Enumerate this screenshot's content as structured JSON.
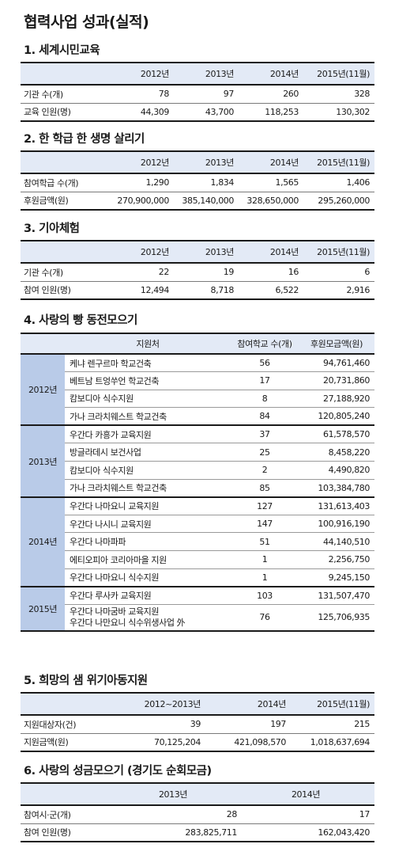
{
  "main_title": "협력사업 성과(실적)",
  "s1": {
    "title": "1. 세계시민교육",
    "headers": [
      "",
      "2012년",
      "2013년",
      "2014년",
      "2015년(11월)"
    ],
    "rows": [
      {
        "label": "기관 수(개)",
        "values": [
          "78",
          "97",
          "260",
          "328"
        ]
      },
      {
        "label": "교육 인원(명)",
        "values": [
          "44,309",
          "43,700",
          "118,253",
          "130,302"
        ]
      }
    ]
  },
  "s2": {
    "title": "2. 한 학급 한 생명 살리기",
    "headers": [
      "",
      "2012년",
      "2013년",
      "2014년",
      "2015년(11월)"
    ],
    "rows": [
      {
        "label": "참여학급 수(개)",
        "values": [
          "1,290",
          "1,834",
          "1,565",
          "1,406"
        ]
      },
      {
        "label": "후원금액(원)",
        "values": [
          "270,900,000",
          "385,140,000",
          "328,650,000",
          "295,260,000"
        ]
      }
    ]
  },
  "s3": {
    "title": "3. 기아체험",
    "headers": [
      "",
      "2012년",
      "2013년",
      "2014년",
      "2015년(11월)"
    ],
    "rows": [
      {
        "label": "기관 수(개)",
        "values": [
          "22",
          "19",
          "16",
          "6"
        ]
      },
      {
        "label": "참여 인원(명)",
        "values": [
          "12,494",
          "8,718",
          "6,522",
          "2,916"
        ]
      }
    ]
  },
  "s4": {
    "title": "4. 사랑의 빵 동전모으기",
    "headers": [
      "지원처",
      "참여학교 수(개)",
      "후원모금액(원)"
    ],
    "groups": [
      {
        "year": "2012년",
        "rows": [
          {
            "dest": "케냐 렌구르마 학교건축",
            "schools": "56",
            "amount": "94,761,460"
          },
          {
            "dest": "베트남 트엉쑤언 학교건축",
            "schools": "17",
            "amount": "20,731,860"
          },
          {
            "dest": "캄보디아 식수지원",
            "schools": "8",
            "amount": "27,188,920"
          },
          {
            "dest": "가나 크라치웨스트 학교건축",
            "schools": "84",
            "amount": "120,805,240"
          }
        ]
      },
      {
        "year": "2013년",
        "rows": [
          {
            "dest": "우간다 카흥가 교육지원",
            "schools": "37",
            "amount": "61,578,570"
          },
          {
            "dest": "방글라데시 보건사업",
            "schools": "25",
            "amount": "8,458,220"
          },
          {
            "dest": "캄보디아 식수지원",
            "schools": "2",
            "amount": "4,490,820"
          },
          {
            "dest": "가나 크라치웨스트 학교건축",
            "schools": "85",
            "amount": "103,384,780"
          }
        ]
      },
      {
        "year": "2014년",
        "rows": [
          {
            "dest": "우간다 나마요니 교육지원",
            "schools": "127",
            "amount": "131,613,403"
          },
          {
            "dest": "우간다 나시니 교육지원",
            "schools": "147",
            "amount": "100,916,190"
          },
          {
            "dest": "우간다 나마파파",
            "schools": "51",
            "amount": "44,140,510"
          },
          {
            "dest": "에티오피아 코리아마을 지원",
            "schools": "1",
            "amount": "2,256,750"
          },
          {
            "dest": "우간다 나마요니 식수지원",
            "schools": "1",
            "amount": "9,245,150"
          }
        ]
      },
      {
        "year": "2015년",
        "rows": [
          {
            "dest": "우간다 루사카 교육지원",
            "schools": "103",
            "amount": "131,507,470"
          },
          {
            "dest": "우간다 나마굼바 교육지원",
            "dest2": "우간다 나만요니 식수위생사업 外",
            "schools": "76",
            "amount": "125,706,935"
          }
        ]
      }
    ]
  },
  "s5": {
    "title": "5. 희망의 샘 위기아동지원",
    "headers": [
      "",
      "2012~2013년",
      "2014년",
      "2015년(11월)"
    ],
    "rows": [
      {
        "label": "지원대상자(건)",
        "values": [
          "39",
          "197",
          "215"
        ]
      },
      {
        "label": "지원금액(원)",
        "values": [
          "70,125,204",
          "421,098,570",
          "1,018,637,694"
        ]
      }
    ]
  },
  "s6": {
    "title": "6. 사랑의 성금모으기 (경기도 순회모금)",
    "headers": [
      "",
      "2013년",
      "2014년"
    ],
    "rows": [
      {
        "label": "참여시·군(개)",
        "values": [
          "28",
          "17"
        ]
      },
      {
        "label": "참여 인원(명)",
        "values": [
          "283,825,711",
          "162,043,420"
        ]
      }
    ]
  }
}
